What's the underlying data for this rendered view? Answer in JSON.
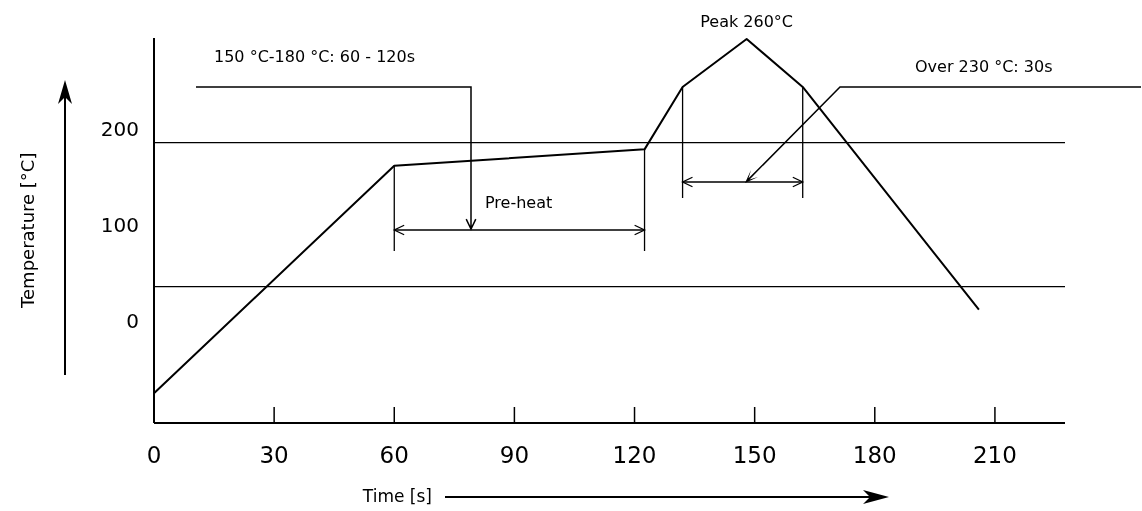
{
  "chart_data": {
    "type": "line",
    "xlabel": "Time [s]",
    "ylabel": "Temperature [°C]",
    "x": [
      0,
      60,
      122.5,
      132,
      148,
      162,
      206
    ],
    "series": [
      {
        "color": "#000000",
        "values": [
          -75,
          162,
          179,
          244,
          294,
          244,
          12
        ]
      }
    ],
    "xlim": [
      0,
      227.5
    ],
    "xticks": [
      0,
      30,
      60,
      90,
      120,
      150,
      180,
      210
    ],
    "ylim": [
      -106,
      295
    ],
    "yticks": [
      0,
      100,
      200
    ],
    "ref_lines": [
      {
        "axis": "y",
        "value": 186,
        "color": "#000000"
      },
      {
        "axis": "y",
        "value": 36,
        "color": "#000000"
      }
    ],
    "annotations": [
      "150 °C-180 °C: 60 - 120s",
      "Pre-heat",
      {
        "text": "Peak 260°C",
        "x": 148,
        "y": 294
      },
      "Over 230 °C: 30s"
    ],
    "grid": false,
    "marker": "none",
    "line_style": "solid"
  }
}
